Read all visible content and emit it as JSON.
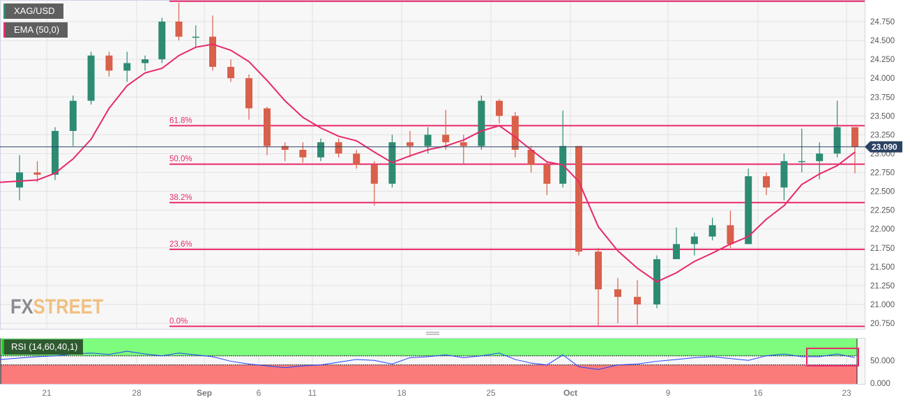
{
  "legend": {
    "symbol": "XAG/USD",
    "indicator": "EMA (50,0)",
    "rsi": "RSI (14,60,40,1)"
  },
  "logo": {
    "fx": "FX",
    "street": "STREET"
  },
  "colors": {
    "up": "#2e8b73",
    "down": "#d9604a",
    "ema": "#e8286a",
    "fib": "#e8286a",
    "price_tag": "#2b4262",
    "rsi_line": "#2040ff",
    "rsi_high": "#7dfc7d",
    "rsi_low": "#fb7b7b"
  },
  "chart_data": {
    "type": "candlestick",
    "yaxis": {
      "ticks": [
        "24.750",
        "24.500",
        "24.250",
        "24.000",
        "23.750",
        "23.500",
        "23.250",
        "23.000",
        "22.750",
        "22.500",
        "22.250",
        "22.000",
        "21.750",
        "21.500",
        "21.250",
        "21.000",
        "20.750"
      ],
      "range": [
        20.68,
        25.03
      ]
    },
    "xaxis": {
      "ticks": [
        {
          "date": "Aug 21",
          "label": "21"
        },
        {
          "date": "Aug 28",
          "label": "28"
        },
        {
          "date": "Sep 1",
          "label": "Sep",
          "bold": true
        },
        {
          "date": "Sep 6",
          "label": "6"
        },
        {
          "date": "Sep 11",
          "label": "11"
        },
        {
          "date": "Sep 18",
          "label": "18"
        },
        {
          "date": "Sep 25",
          "label": "25"
        },
        {
          "date": "Oct 2",
          "label": "Oct",
          "bold": true
        },
        {
          "date": "Oct 9",
          "label": "9"
        },
        {
          "date": "Oct 16",
          "label": "16"
        },
        {
          "date": "Oct 23",
          "label": "23"
        }
      ]
    },
    "current_price": {
      "value": 23.09,
      "label": "23.090"
    },
    "fibonacci": [
      {
        "level": 25.02,
        "label": ""
      },
      {
        "level": 23.37,
        "label": "61.8%"
      },
      {
        "level": 22.86,
        "label": "50.0%"
      },
      {
        "level": 22.35,
        "label": "38.2%"
      },
      {
        "level": 21.73,
        "label": "23.6%"
      },
      {
        "level": 20.71,
        "label": "0.0%"
      }
    ],
    "candles": [
      [
        "Aug 17",
        22.55,
        22.98,
        22.38,
        22.75
      ],
      [
        "Aug 18",
        22.75,
        22.9,
        22.62,
        22.72
      ],
      [
        "Aug 21",
        22.72,
        23.35,
        22.65,
        23.3
      ],
      [
        "Aug 22",
        23.3,
        23.77,
        23.1,
        23.7
      ],
      [
        "Aug 23",
        23.7,
        24.35,
        23.65,
        24.3
      ],
      [
        "Aug 24",
        24.3,
        24.35,
        24.02,
        24.1
      ],
      [
        "Aug 25",
        24.1,
        24.35,
        23.95,
        24.2
      ],
      [
        "Aug 28",
        24.2,
        24.3,
        24.1,
        24.25
      ],
      [
        "Aug 29",
        24.25,
        24.8,
        24.2,
        24.75
      ],
      [
        "Aug 30",
        24.75,
        25.0,
        24.5,
        24.55
      ],
      [
        "Aug 31",
        24.55,
        24.7,
        24.4,
        24.55
      ],
      [
        "Sep 1",
        24.55,
        24.83,
        24.1,
        24.15
      ],
      [
        "Sep 4",
        24.15,
        24.25,
        23.95,
        24.0
      ],
      [
        "Sep 5",
        24.0,
        24.05,
        23.45,
        23.6
      ],
      [
        "Sep 6",
        23.6,
        23.62,
        22.98,
        23.1
      ],
      [
        "Sep 7",
        23.1,
        23.15,
        22.9,
        23.05
      ],
      [
        "Sep 8",
        23.05,
        23.15,
        22.88,
        22.95
      ],
      [
        "Sep 11",
        22.95,
        23.2,
        22.9,
        23.15
      ],
      [
        "Sep 12",
        23.15,
        23.2,
        22.95,
        23.0
      ],
      [
        "Sep 13",
        23.0,
        23.05,
        22.8,
        22.85
      ],
      [
        "Sep 14",
        22.85,
        22.9,
        22.31,
        22.6
      ],
      [
        "Sep 15",
        22.6,
        23.25,
        22.55,
        23.15
      ],
      [
        "Sep 18",
        23.15,
        23.3,
        22.95,
        23.1
      ],
      [
        "Sep 19",
        23.1,
        23.35,
        23.0,
        23.25
      ],
      [
        "Sep 20",
        23.25,
        23.58,
        23.05,
        23.15
      ],
      [
        "Sep 21",
        23.15,
        23.25,
        22.85,
        23.1
      ],
      [
        "Sep 22",
        23.1,
        23.77,
        23.05,
        23.7
      ],
      [
        "Sep 25",
        23.7,
        23.72,
        23.4,
        23.5
      ],
      [
        "Sep 26",
        23.5,
        23.55,
        22.95,
        23.05
      ],
      [
        "Sep 27",
        23.05,
        23.1,
        22.75,
        22.85
      ],
      [
        "Sep 28",
        22.85,
        22.9,
        22.45,
        22.6
      ],
      [
        "Sep 29",
        22.6,
        23.57,
        22.55,
        23.1
      ],
      [
        "Oct 2",
        23.1,
        23.1,
        21.65,
        21.7
      ],
      [
        "Oct 3",
        21.7,
        21.75,
        20.72,
        21.2
      ],
      [
        "Oct 4",
        21.2,
        21.35,
        20.75,
        21.1
      ],
      [
        "Oct 5",
        21.1,
        21.32,
        20.73,
        21.0
      ],
      [
        "Oct 6",
        21.0,
        21.65,
        20.95,
        21.6
      ],
      [
        "Oct 9",
        21.6,
        22.02,
        21.6,
        21.8
      ],
      [
        "Oct 10",
        21.8,
        21.95,
        21.65,
        21.9
      ],
      [
        "Oct 11",
        21.9,
        22.15,
        21.85,
        22.05
      ],
      [
        "Oct 12",
        22.05,
        22.24,
        21.75,
        21.8
      ],
      [
        "Oct 13",
        21.8,
        22.8,
        21.8,
        22.7
      ],
      [
        "Oct 16",
        22.7,
        22.75,
        22.45,
        22.55
      ],
      [
        "Oct 17",
        22.55,
        23.0,
        22.38,
        22.9
      ],
      [
        "Oct 18",
        22.9,
        23.33,
        22.75,
        22.9
      ],
      [
        "Oct 19",
        22.9,
        23.15,
        22.66,
        23.0
      ],
      [
        "Oct 20",
        23.0,
        23.7,
        22.95,
        23.35
      ],
      [
        "Oct 23",
        23.35,
        23.35,
        22.74,
        23.09
      ]
    ],
    "ema_50": [
      22.62,
      22.65,
      22.74,
      22.93,
      23.19,
      23.6,
      23.9,
      24.07,
      24.13,
      24.3,
      24.41,
      24.45,
      24.37,
      24.22,
      23.97,
      23.7,
      23.48,
      23.34,
      23.23,
      23.17,
      23.02,
      22.88,
      22.97,
      23.05,
      23.1,
      23.18,
      23.3,
      23.37,
      23.22,
      23.05,
      22.89,
      22.85,
      22.63,
      22.03,
      21.71,
      21.48,
      21.3,
      21.42,
      21.57,
      21.68,
      21.8,
      21.9,
      22.13,
      22.31,
      22.59,
      22.73,
      22.84,
      23.02
    ],
    "rsi": {
      "ticks": [
        "50.000",
        "0.000"
      ],
      "range": [
        0,
        100
      ],
      "upper": 60,
      "lower": 40,
      "values": [
        52,
        58,
        60,
        64,
        66,
        63,
        70,
        64,
        60,
        66,
        62,
        58,
        48,
        42,
        38,
        34,
        38,
        40,
        46,
        52,
        50,
        42,
        56,
        58,
        62,
        56,
        60,
        66,
        52,
        44,
        40,
        62,
        36,
        30,
        40,
        42,
        48,
        52,
        56,
        58,
        54,
        50,
        60,
        64,
        58,
        58,
        64,
        56
      ]
    }
  }
}
